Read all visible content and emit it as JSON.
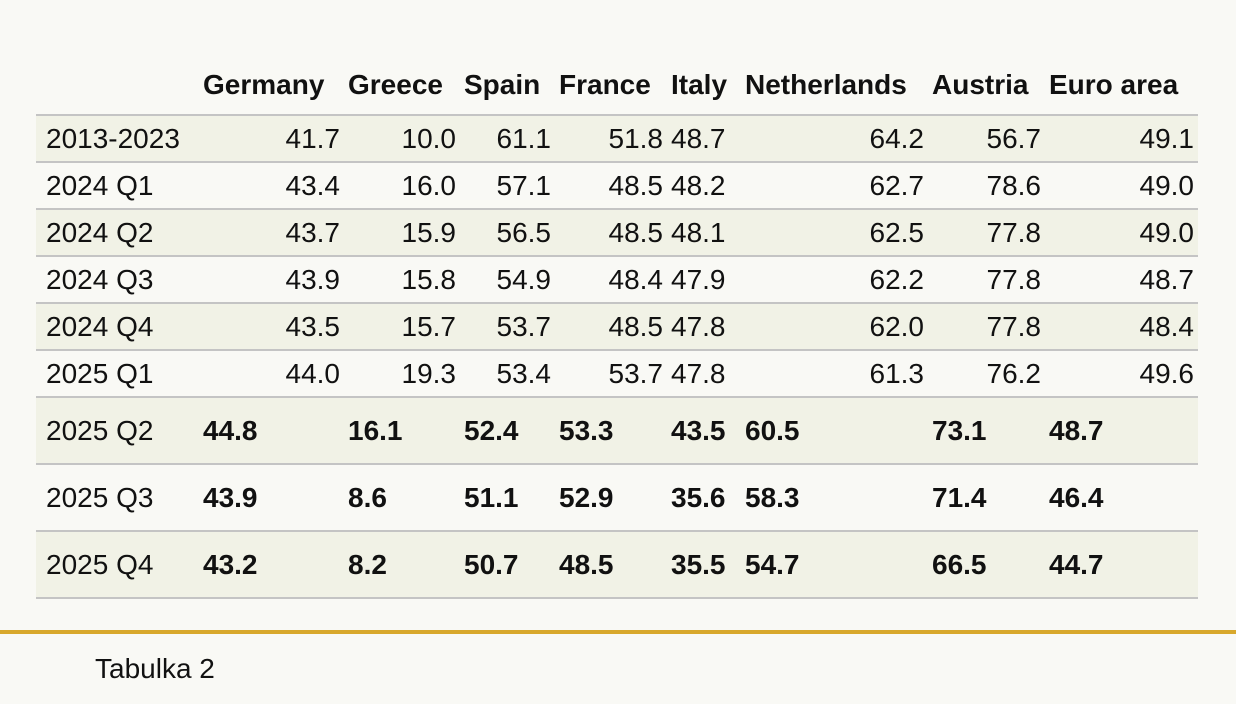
{
  "chart_data": {
    "type": "table",
    "columns": [
      "Germany",
      "Greece",
      "Spain",
      "France",
      "Italy",
      "Netherlands",
      "Austria",
      "Euro area"
    ],
    "rows": [
      {
        "label": "2013-2023",
        "values": [
          "41.7",
          "10.0",
          "61.1",
          "51.8",
          "48.7",
          "64.2",
          "56.7",
          "49.1"
        ]
      },
      {
        "label": "2024 Q1",
        "values": [
          "43.4",
          "16.0",
          "57.1",
          "48.5",
          "48.2",
          "62.7",
          "78.6",
          "49.0"
        ]
      },
      {
        "label": "2024 Q2",
        "values": [
          "43.7",
          "15.9",
          "56.5",
          "48.5",
          "48.1",
          "62.5",
          "77.8",
          "49.0"
        ]
      },
      {
        "label": "2024 Q3",
        "values": [
          "43.9",
          "15.8",
          "54.9",
          "48.4",
          "47.9",
          "62.2",
          "77.8",
          "48.7"
        ]
      },
      {
        "label": "2024 Q4",
        "values": [
          "43.5",
          "15.7",
          "53.7",
          "48.5",
          "47.8",
          "62.0",
          "77.8",
          "48.4"
        ]
      },
      {
        "label": "2025 Q1",
        "values": [
          "44.0",
          "19.3",
          "53.4",
          "53.7",
          "47.8",
          "61.3",
          "76.2",
          "49.6"
        ]
      },
      {
        "label": "2025 Q2",
        "values": [
          "44.8",
          "16.1",
          "52.4",
          "53.3",
          "43.5",
          "60.5",
          "73.1",
          "48.7"
        ]
      },
      {
        "label": "2025 Q3",
        "values": [
          "43.9",
          "8.6",
          "51.1",
          "52.9",
          "35.6",
          "58.3",
          "71.4",
          "46.4"
        ]
      },
      {
        "label": "2025 Q4",
        "values": [
          "43.2",
          "8.2",
          "50.7",
          "48.5",
          "35.5",
          "54.7",
          "66.5",
          "44.7"
        ]
      }
    ]
  },
  "caption": "Tabulka 2",
  "colors": {
    "background": "#f9f9f5",
    "row_shade": "#f1f2e6",
    "rule": "#c4c4c4",
    "accent_line": "#d8a82c"
  }
}
